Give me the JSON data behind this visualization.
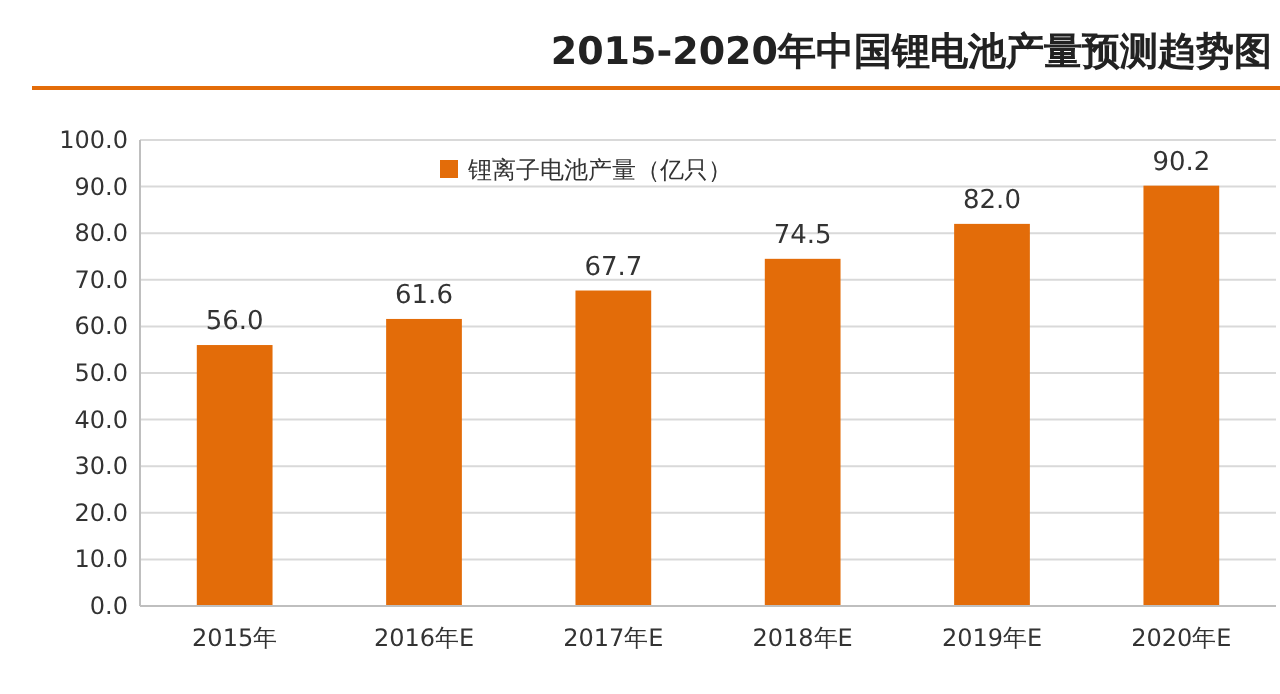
{
  "chart_data": {
    "type": "bar",
    "title": "2015-2020年中国锂电池产量预测趋势图",
    "categories": [
      "2015年",
      "2016年E",
      "2017年E",
      "2018年E",
      "2019年E",
      "2020年E"
    ],
    "series": [
      {
        "name": "锂离子电池产量（亿只）",
        "color": "#e36c09",
        "values": [
          56.0,
          61.6,
          67.7,
          74.5,
          82.0,
          90.2
        ],
        "value_labels": [
          "56.0",
          "61.6",
          "67.7",
          "74.5",
          "82.0",
          "90.2"
        ]
      }
    ],
    "ylim": [
      0,
      100
    ],
    "yticks": [
      {
        "value": 0,
        "label": "0.0"
      },
      {
        "value": 10,
        "label": "10.0"
      },
      {
        "value": 20,
        "label": "20.0"
      },
      {
        "value": 30,
        "label": "30.0"
      },
      {
        "value": 40,
        "label": "40.0"
      },
      {
        "value": 50,
        "label": "50.0"
      },
      {
        "value": 60,
        "label": "60.0"
      },
      {
        "value": 70,
        "label": "70.0"
      },
      {
        "value": 80,
        "label": "80.0"
      },
      {
        "value": 90,
        "label": "90.0"
      },
      {
        "value": 100,
        "label": "100.0"
      }
    ],
    "grid": "y",
    "legend": "top left"
  }
}
